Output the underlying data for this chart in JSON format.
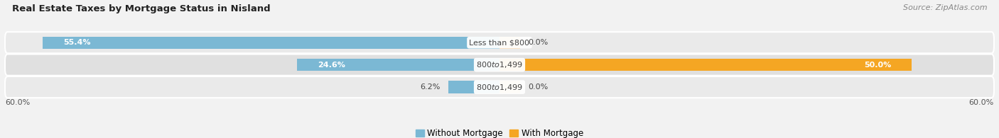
{
  "title": "Real Estate Taxes by Mortgage Status in Nisland",
  "source": "Source: ZipAtlas.com",
  "categories": [
    "Less than $800",
    "$800 to $1,499",
    "$800 to $1,499"
  ],
  "without_mortgage": [
    55.4,
    24.6,
    6.2
  ],
  "with_mortgage": [
    0.0,
    50.0,
    0.0
  ],
  "without_mortgage_label": "Without Mortgage",
  "with_mortgage_label": "With Mortgage",
  "blue_color": "#7BB8D4",
  "orange_color": "#F5A623",
  "orange_light_color": "#F5C88A",
  "row_bg_colors": [
    "#EAEAEA",
    "#E0E0E0",
    "#EAEAEA"
  ],
  "fig_bg_color": "#F2F2F2",
  "axis_limit": 60.0,
  "title_fontsize": 9.5,
  "source_fontsize": 8,
  "label_fontsize": 8,
  "bar_label_fontsize": 8
}
